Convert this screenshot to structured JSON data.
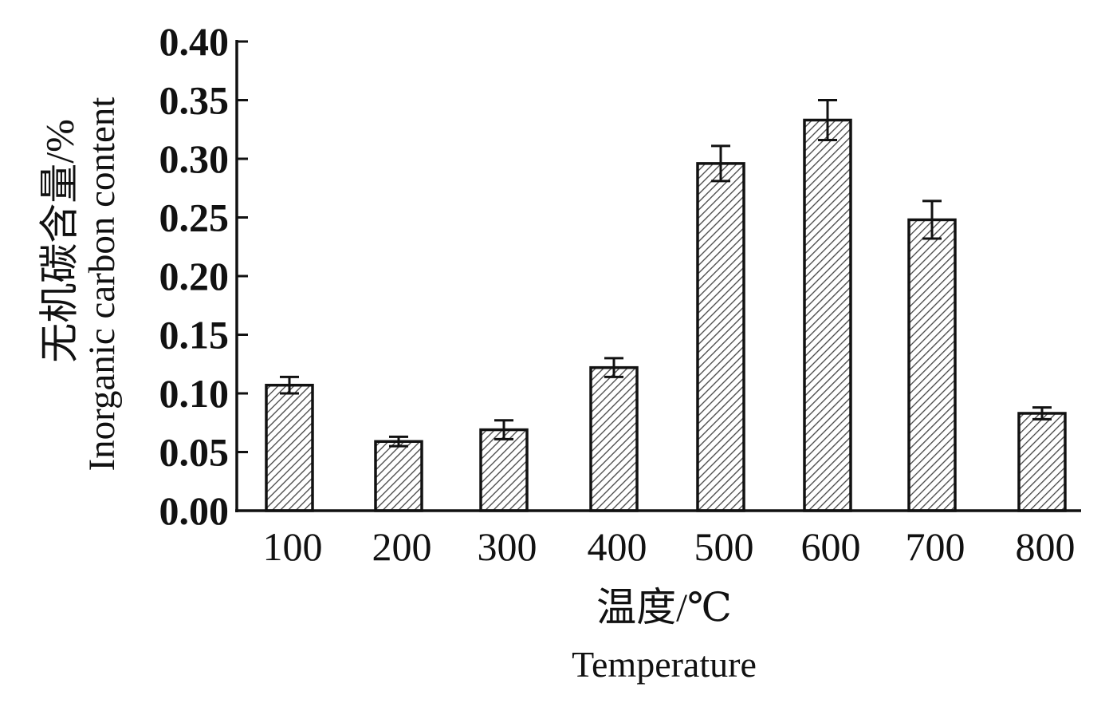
{
  "chart_data": {
    "type": "bar",
    "categories": [
      "100",
      "200",
      "300",
      "400",
      "500",
      "600",
      "700",
      "800"
    ],
    "values": [
      0.107,
      0.059,
      0.069,
      0.122,
      0.296,
      0.333,
      0.248,
      0.083
    ],
    "error": [
      0.007,
      0.004,
      0.008,
      0.008,
      0.015,
      0.017,
      0.016,
      0.005
    ],
    "ylim": [
      0,
      0.4
    ],
    "yticks": [
      "0.00",
      "0.05",
      "0.10",
      "0.15",
      "0.20",
      "0.25",
      "0.30",
      "0.35",
      "0.40"
    ],
    "ylabel_cn": "无机碳含量/%",
    "ylabel_en": "Inorganic carbon content",
    "xlabel_cn": "温度/℃",
    "xlabel_en": "Temperature",
    "bar_fill": "hatched",
    "colors": {
      "axis": "#111111",
      "bar_stroke": "#111111",
      "hatch": "#444444",
      "background": "#ffffff"
    }
  }
}
